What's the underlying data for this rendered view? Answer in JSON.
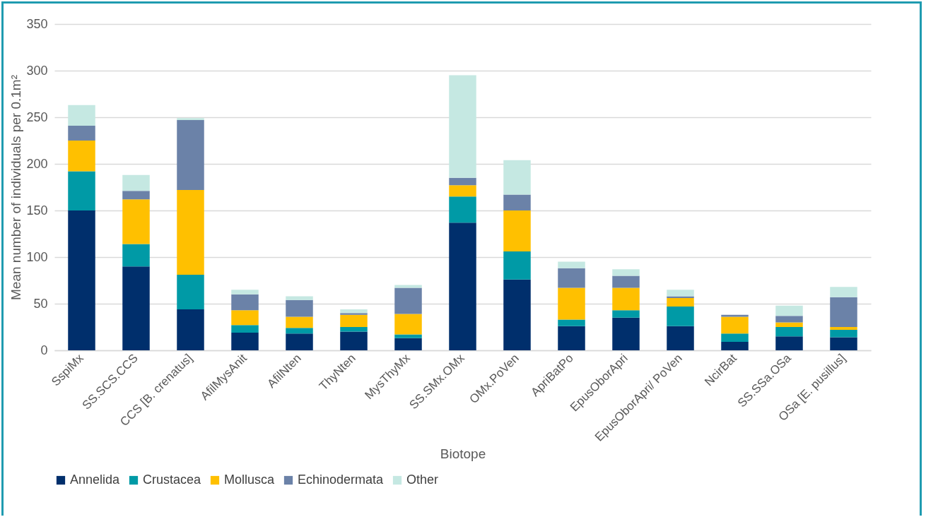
{
  "chart_data": {
    "type": "bar",
    "stacked": true,
    "xlabel": "Biotope",
    "ylabel": "Mean number of individuals per 0.1m²",
    "categories": [
      "SspiMx",
      "SS.SCS.CCS",
      "CCS [B. crenatus]",
      "AfilMysAnit",
      "AfilNten",
      "ThyNten",
      "MysThyMx",
      "SS.SMx.OMx",
      "OMx.PoVen",
      "ApriBatPo",
      "EpusOborApri",
      "EpusOborApri/ PoVen",
      "NcirBat",
      "SS.SSa.OSa",
      "OSa [E. pusillus]"
    ],
    "series": [
      {
        "name": "Annelida",
        "color": "#002f6c",
        "values": [
          150,
          90,
          44,
          19,
          18,
          20,
          13,
          137,
          76,
          26,
          35,
          26,
          9,
          15,
          14
        ]
      },
      {
        "name": "Crustacea",
        "color": "#009aa6",
        "values": [
          42,
          24,
          37,
          8,
          6,
          5,
          4,
          28,
          30,
          7,
          8,
          21,
          9,
          10,
          8
        ]
      },
      {
        "name": "Mollusca",
        "color": "#ffc000",
        "values": [
          33,
          48,
          91,
          16,
          12,
          13,
          22,
          12,
          44,
          34,
          24,
          9,
          18,
          5,
          3
        ]
      },
      {
        "name": "Echinodermata",
        "color": "#6b82a8",
        "values": [
          16,
          9,
          75,
          17,
          18,
          2,
          28,
          8,
          17,
          21,
          13,
          2,
          2,
          7,
          32
        ]
      },
      {
        "name": "Other",
        "color": "#c5e8e2",
        "values": [
          22,
          17,
          2,
          5,
          4,
          4,
          3,
          110,
          37,
          7,
          7,
          7,
          null,
          11,
          11
        ]
      }
    ],
    "ylim": [
      0,
      350
    ],
    "yticks": [
      0,
      50,
      100,
      150,
      200,
      250,
      300,
      350
    ],
    "grid": "y",
    "legend": "bottom"
  }
}
